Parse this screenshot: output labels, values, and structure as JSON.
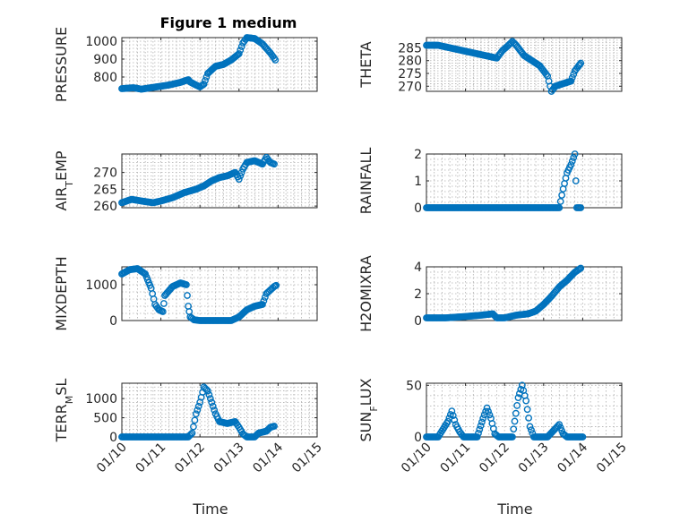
{
  "figure": {
    "title": "Figure 1 medium",
    "marker_color": "#0072BD"
  },
  "chart_data": [
    {
      "type": "scatter",
      "ylabel": "PRESSURE",
      "xlabel": "",
      "title": "Figure 1 medium",
      "xlim": [
        0,
        5
      ],
      "x_tick_labels": [
        "01/10",
        "01/11",
        "01/12",
        "01/13",
        "01/14",
        "01/15"
      ],
      "ylim": [
        720,
        1020
      ],
      "y_ticks": [
        800,
        900,
        1000
      ],
      "grid": true,
      "points": [
        [
          0,
          735
        ],
        [
          0.3,
          740
        ],
        [
          0.5,
          732
        ],
        [
          0.8,
          742
        ],
        [
          1.2,
          755
        ],
        [
          1.5,
          770
        ],
        [
          1.7,
          785
        ],
        [
          1.75,
          772
        ],
        [
          1.9,
          755
        ],
        [
          2.0,
          745
        ],
        [
          2.1,
          760
        ],
        [
          2.2,
          820
        ],
        [
          2.4,
          860
        ],
        [
          2.6,
          870
        ],
        [
          2.8,
          895
        ],
        [
          3.0,
          930
        ],
        [
          3.1,
          990
        ],
        [
          3.2,
          1020
        ],
        [
          3.4,
          1015
        ],
        [
          3.5,
          1000
        ],
        [
          3.6,
          985
        ],
        [
          3.7,
          960
        ],
        [
          3.8,
          935
        ],
        [
          3.9,
          905
        ],
        [
          3.93,
          895
        ]
      ]
    },
    {
      "type": "scatter",
      "ylabel": "THETA",
      "xlabel": "",
      "xlim": [
        0,
        5
      ],
      "x_tick_labels": [
        "01/10",
        "01/11",
        "01/12",
        "01/13",
        "01/14",
        "01/15"
      ],
      "ylim": [
        268,
        289
      ],
      "y_ticks": [
        270,
        275,
        280,
        285
      ],
      "grid": true,
      "points": [
        [
          0,
          286
        ],
        [
          0.3,
          286
        ],
        [
          0.6,
          285
        ],
        [
          0.9,
          284
        ],
        [
          1.2,
          283
        ],
        [
          1.5,
          282
        ],
        [
          1.8,
          281
        ],
        [
          1.95,
          284
        ],
        [
          2.1,
          286
        ],
        [
          2.2,
          287.5
        ],
        [
          2.3,
          286
        ],
        [
          2.5,
          282
        ],
        [
          2.7,
          280
        ],
        [
          2.9,
          278
        ],
        [
          3.0,
          276
        ],
        [
          3.1,
          274
        ],
        [
          3.2,
          268
        ],
        [
          3.3,
          270
        ],
        [
          3.5,
          271
        ],
        [
          3.7,
          272
        ],
        [
          3.8,
          276
        ],
        [
          3.9,
          278
        ],
        [
          3.95,
          279
        ]
      ]
    },
    {
      "type": "scatter",
      "ylabel": "AIR_TEMP",
      "xlabel": "",
      "xlim": [
        0,
        5
      ],
      "x_tick_labels": [
        "01/10",
        "01/11",
        "01/12",
        "01/13",
        "01/14",
        "01/15"
      ],
      "ylim": [
        259.5,
        275.5
      ],
      "y_ticks": [
        260,
        265,
        270
      ],
      "grid": true,
      "points": [
        [
          0,
          261
        ],
        [
          0.25,
          262
        ],
        [
          0.5,
          261.5
        ],
        [
          0.8,
          261
        ],
        [
          1.0,
          261.5
        ],
        [
          1.3,
          262.5
        ],
        [
          1.6,
          264
        ],
        [
          1.9,
          265
        ],
        [
          2.1,
          266
        ],
        [
          2.3,
          267.5
        ],
        [
          2.5,
          268.5
        ],
        [
          2.7,
          269
        ],
        [
          2.9,
          270
        ],
        [
          3.0,
          268
        ],
        [
          3.1,
          271
        ],
        [
          3.2,
          273
        ],
        [
          3.4,
          273.5
        ],
        [
          3.6,
          272.5
        ],
        [
          3.7,
          274.5
        ],
        [
          3.8,
          273
        ],
        [
          3.9,
          272.5
        ]
      ]
    },
    {
      "type": "scatter",
      "ylabel": "RAINFALL",
      "xlabel": "",
      "xlim": [
        0,
        5
      ],
      "x_tick_labels": [
        "01/10",
        "01/11",
        "01/12",
        "01/13",
        "01/14",
        "01/15"
      ],
      "ylim": [
        0,
        2
      ],
      "y_ticks": [
        0,
        1,
        2
      ],
      "grid": true,
      "points": [
        [
          0,
          0
        ],
        [
          0.5,
          0
        ],
        [
          1.0,
          0
        ],
        [
          1.5,
          0
        ],
        [
          2.0,
          0
        ],
        [
          2.5,
          0
        ],
        [
          3.0,
          0
        ],
        [
          3.4,
          0
        ],
        [
          3.5,
          0.7
        ],
        [
          3.6,
          1.3
        ],
        [
          3.7,
          1.6
        ],
        [
          3.8,
          2.0
        ],
        [
          3.85,
          0
        ],
        [
          3.95,
          0
        ]
      ]
    },
    {
      "type": "scatter",
      "ylabel": "MIXDEPTH",
      "xlabel": "",
      "xlim": [
        0,
        5
      ],
      "x_tick_labels": [
        "01/10",
        "01/11",
        "01/12",
        "01/13",
        "01/14",
        "01/15"
      ],
      "ylim": [
        0,
        1500
      ],
      "y_ticks": [
        0,
        1000
      ],
      "grid": true,
      "points": [
        [
          0,
          1300
        ],
        [
          0.2,
          1420
        ],
        [
          0.4,
          1450
        ],
        [
          0.6,
          1300
        ],
        [
          0.75,
          900
        ],
        [
          0.85,
          450
        ],
        [
          0.95,
          300
        ],
        [
          1.05,
          250
        ],
        [
          1.1,
          700
        ],
        [
          1.3,
          950
        ],
        [
          1.5,
          1050
        ],
        [
          1.65,
          1000
        ],
        [
          1.7,
          400
        ],
        [
          1.75,
          100
        ],
        [
          1.85,
          20
        ],
        [
          2.0,
          0
        ],
        [
          2.5,
          0
        ],
        [
          2.8,
          0
        ],
        [
          3.0,
          100
        ],
        [
          3.2,
          300
        ],
        [
          3.4,
          400
        ],
        [
          3.6,
          450
        ],
        [
          3.7,
          750
        ],
        [
          3.8,
          850
        ],
        [
          3.9,
          950
        ],
        [
          3.95,
          980
        ]
      ]
    },
    {
      "type": "scatter",
      "ylabel": "H2OMIXRA",
      "xlabel": "",
      "xlim": [
        0,
        5
      ],
      "x_tick_labels": [
        "01/10",
        "01/11",
        "01/12",
        "01/13",
        "01/14",
        "01/15"
      ],
      "ylim": [
        0,
        4
      ],
      "y_ticks": [
        0,
        2,
        4
      ],
      "grid": true,
      "points": [
        [
          0,
          0.2
        ],
        [
          0.5,
          0.2
        ],
        [
          1.0,
          0.3
        ],
        [
          1.4,
          0.4
        ],
        [
          1.7,
          0.5
        ],
        [
          1.8,
          0.2
        ],
        [
          2.0,
          0.2
        ],
        [
          2.3,
          0.4
        ],
        [
          2.6,
          0.5
        ],
        [
          2.8,
          0.7
        ],
        [
          3.0,
          1.2
        ],
        [
          3.2,
          1.8
        ],
        [
          3.4,
          2.5
        ],
        [
          3.6,
          3.0
        ],
        [
          3.8,
          3.6
        ],
        [
          3.95,
          3.9
        ]
      ]
    },
    {
      "type": "scatter",
      "ylabel": "TERR_MSL",
      "xlabel": "Time",
      "xlim": [
        0,
        5
      ],
      "x_tick_labels": [
        "01/10",
        "01/11",
        "01/12",
        "01/13",
        "01/14",
        "01/15"
      ],
      "ylim": [
        0,
        1400
      ],
      "y_ticks": [
        0,
        500,
        1000
      ],
      "grid": true,
      "points": [
        [
          0,
          0
        ],
        [
          0.5,
          0
        ],
        [
          1.0,
          0
        ],
        [
          1.5,
          0
        ],
        [
          1.7,
          0
        ],
        [
          1.8,
          100
        ],
        [
          1.9,
          600
        ],
        [
          2.0,
          900
        ],
        [
          2.1,
          1300
        ],
        [
          2.2,
          1200
        ],
        [
          2.3,
          900
        ],
        [
          2.4,
          600
        ],
        [
          2.5,
          400
        ],
        [
          2.7,
          350
        ],
        [
          2.9,
          400
        ],
        [
          3.0,
          250
        ],
        [
          3.1,
          80
        ],
        [
          3.2,
          0
        ],
        [
          3.4,
          0
        ],
        [
          3.5,
          100
        ],
        [
          3.7,
          150
        ],
        [
          3.8,
          250
        ],
        [
          3.9,
          280
        ]
      ]
    },
    {
      "type": "scatter",
      "ylabel": "SUN_FLUX",
      "xlabel": "Time",
      "xlim": [
        0,
        5
      ],
      "x_tick_labels": [
        "01/10",
        "01/11",
        "01/12",
        "01/13",
        "01/14",
        "01/15"
      ],
      "ylim": [
        0,
        52
      ],
      "y_ticks": [
        0,
        50
      ],
      "grid": true,
      "points": [
        [
          0,
          0
        ],
        [
          0.3,
          0
        ],
        [
          0.55,
          15
        ],
        [
          0.65,
          25
        ],
        [
          0.75,
          12
        ],
        [
          0.85,
          5
        ],
        [
          0.95,
          0
        ],
        [
          1.3,
          0
        ],
        [
          1.45,
          18
        ],
        [
          1.55,
          28
        ],
        [
          1.65,
          18
        ],
        [
          1.75,
          3
        ],
        [
          1.85,
          0
        ],
        [
          2.2,
          0
        ],
        [
          2.35,
          38
        ],
        [
          2.45,
          50
        ],
        [
          2.55,
          35
        ],
        [
          2.65,
          10
        ],
        [
          2.75,
          0
        ],
        [
          3.1,
          0
        ],
        [
          3.3,
          8
        ],
        [
          3.4,
          12
        ],
        [
          3.5,
          3
        ],
        [
          3.6,
          0
        ],
        [
          4.0,
          0
        ]
      ]
    }
  ]
}
